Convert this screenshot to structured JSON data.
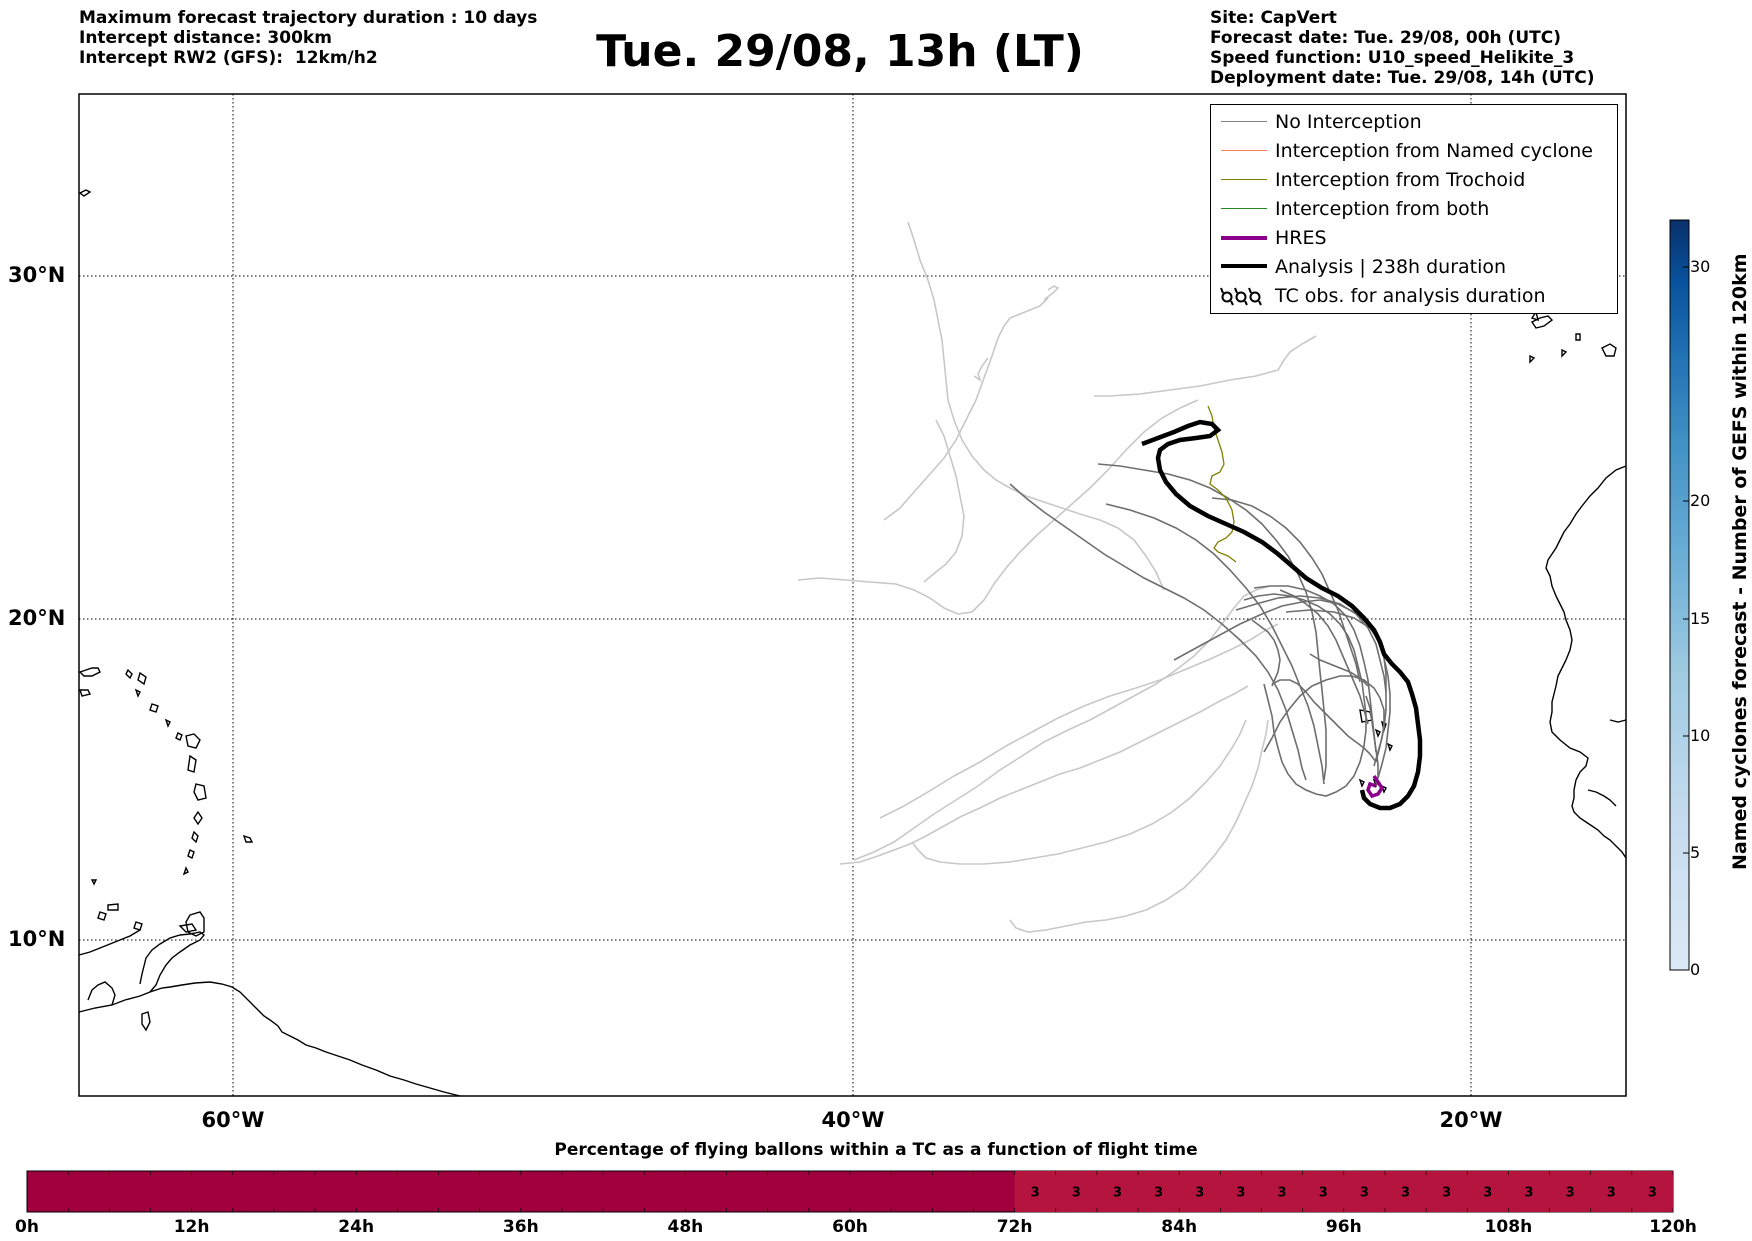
{
  "header": {
    "left_lines": [
      "Maximum forecast trajectory duration : 10 days",
      "Intercept distance: 300km",
      "Intercept RW2 (GFS):  12km/h2"
    ],
    "title": "Tue. 29/08, 13h (LT)",
    "right_lines": [
      "Site: CapVert",
      "Forecast date: Tue. 29/08, 00h (UTC)",
      "Speed function: U10_speed_Helikite_3",
      "Deployment date: Tue. 29/08, 14h (UTC)"
    ]
  },
  "map": {
    "lat_labels": [
      "30°N",
      "20°N",
      "10°N"
    ],
    "lon_labels": [
      "60°W",
      "40°W",
      "20°W"
    ]
  },
  "legend": {
    "items": [
      {
        "label": "No Interception",
        "color": "#808080",
        "icon": "line-thin"
      },
      {
        "label": "Interception from Named cyclone",
        "color": "#ff7f50",
        "icon": "line-thin"
      },
      {
        "label": "Interception from Trochoid",
        "color": "#808000",
        "icon": "line-thin"
      },
      {
        "label": "Interception from both",
        "color": "#228b22",
        "icon": "line-thin"
      },
      {
        "label": "HRES",
        "color": "#8b008b",
        "icon": "line-thick"
      },
      {
        "label": "Analysis | 238h duration",
        "color": "#000000",
        "icon": "line-thick"
      },
      {
        "label": "TC obs. for analysis duration",
        "color": "#000000",
        "icon": "cyclone-symbols"
      }
    ]
  },
  "colorbar": {
    "label": "Named cyclones forecast - Number of GEFS within 120km",
    "ticks": [
      "0",
      "5",
      "10",
      "15",
      "20",
      "30"
    ],
    "colors": [
      "#dbe9f6",
      "#c6dbef",
      "#9ecae1",
      "#6baed6",
      "#4292c6",
      "#2171b5",
      "#08519c",
      "#08306b"
    ]
  },
  "flight_bar": {
    "title": "Percentage of flying ballons within a TC as a function of flight time",
    "tick_labels": [
      "0h",
      "12h",
      "24h",
      "36h",
      "48h",
      "60h",
      "72h",
      "84h",
      "96h",
      "108h",
      "120h"
    ],
    "cell_values": [
      "3",
      "3",
      "3",
      "3",
      "3",
      "3",
      "3",
      "3",
      "3",
      "3",
      "3",
      "3",
      "3",
      "3",
      "3",
      "3"
    ],
    "color_main": "#a0003e",
    "color_active": "#b5143f"
  }
}
